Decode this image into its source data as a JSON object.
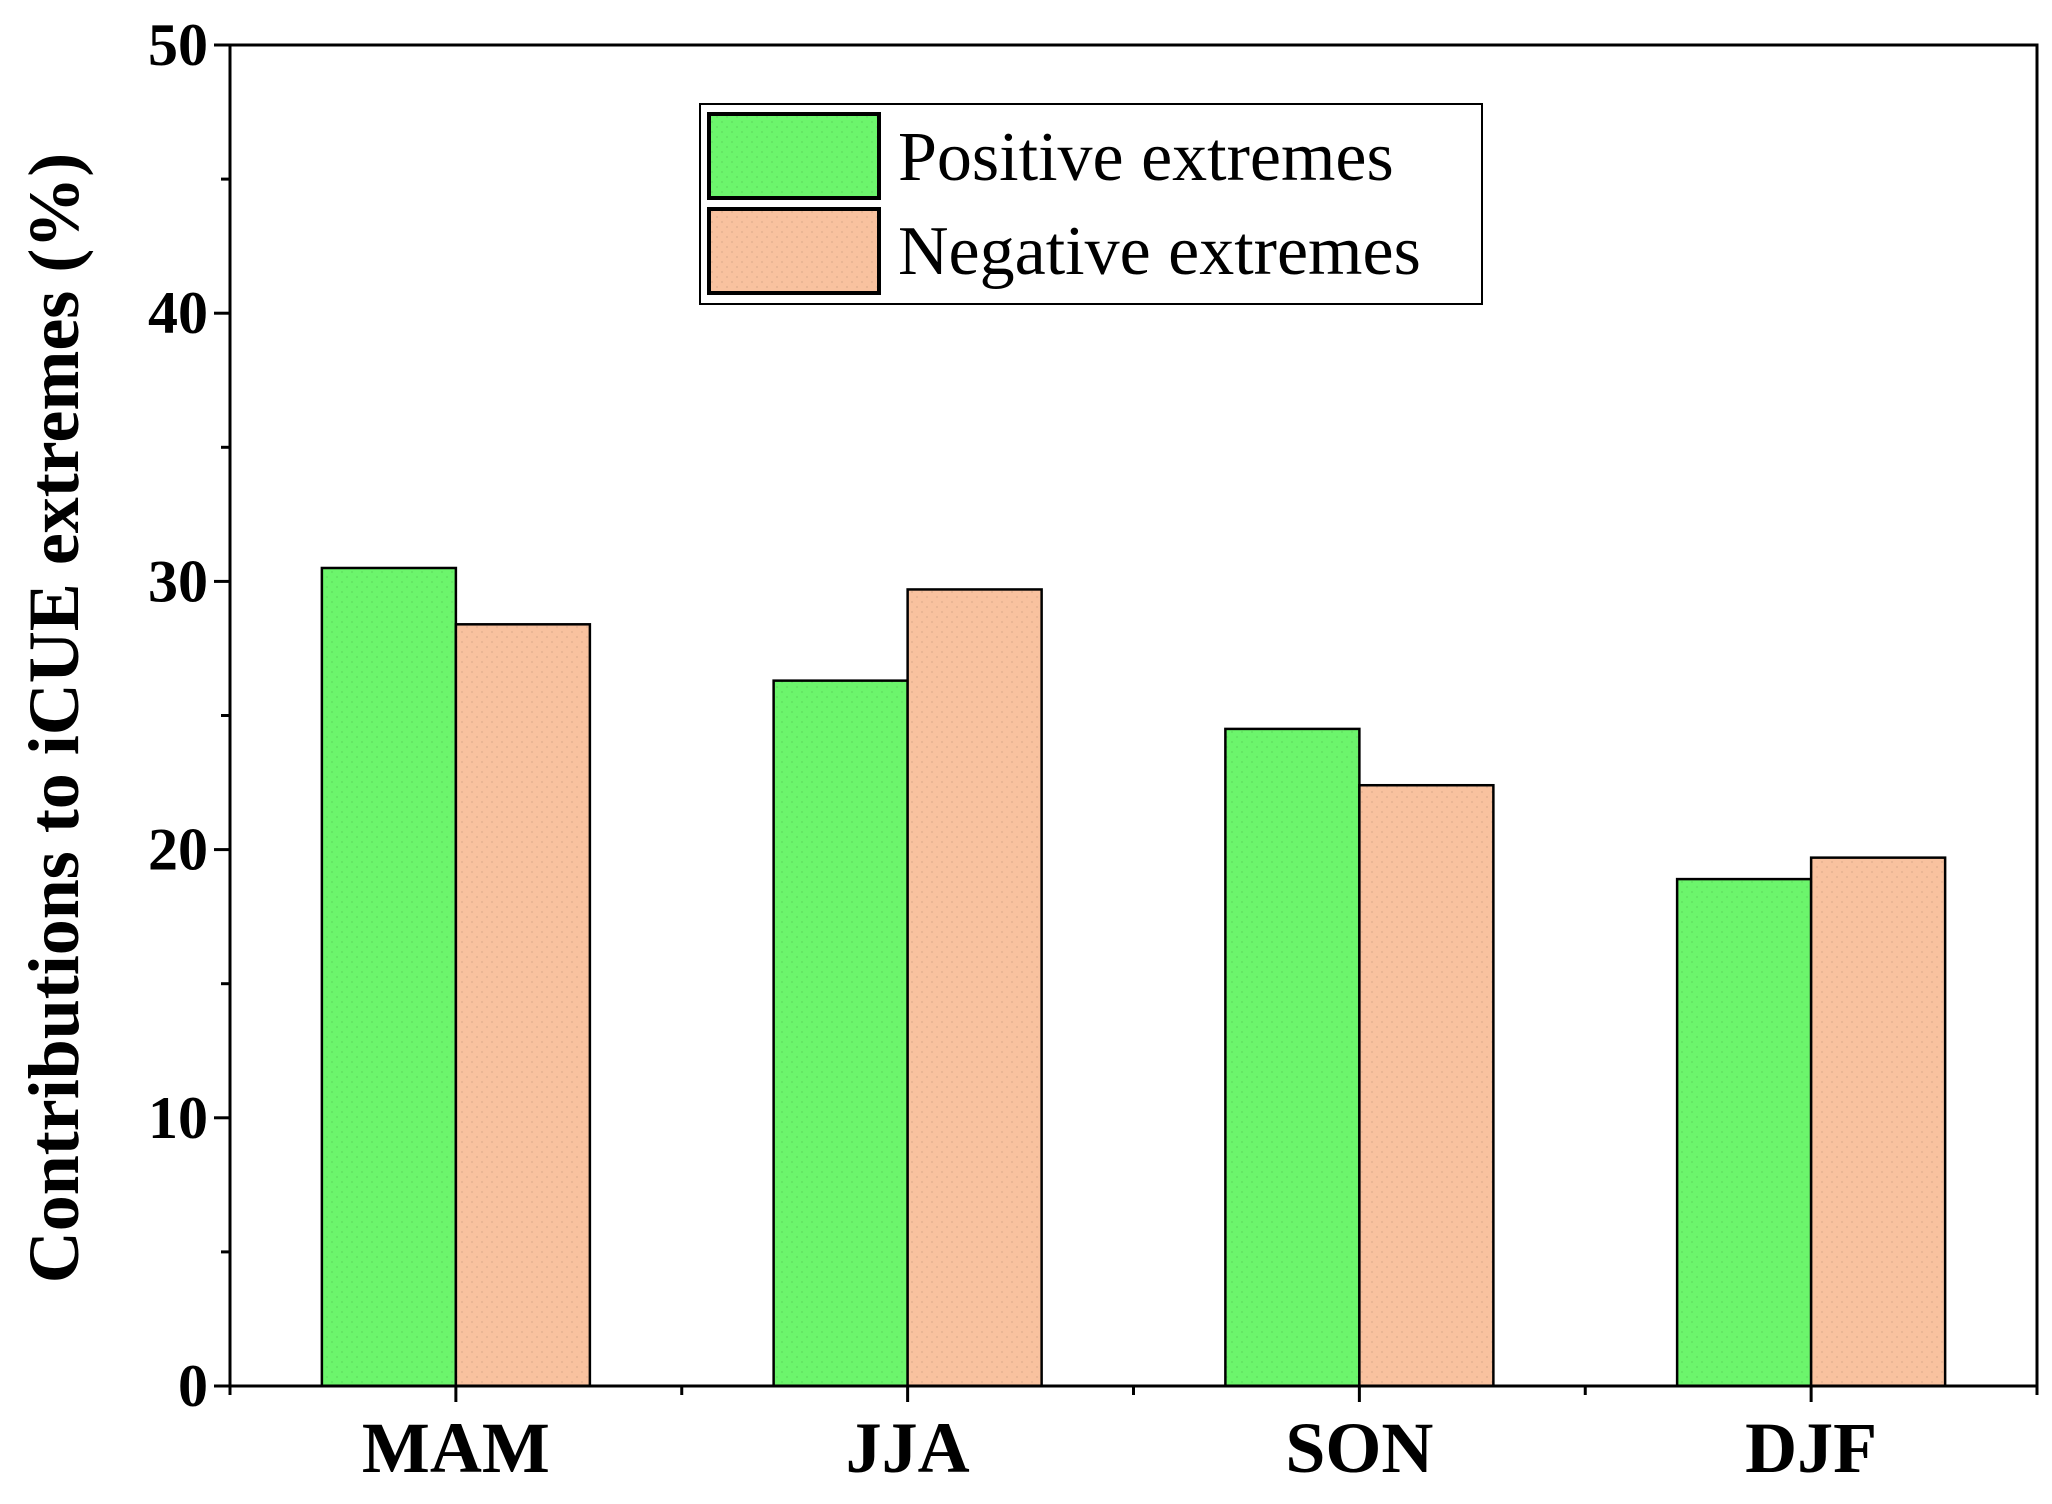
{
  "chart_data": {
    "type": "bar",
    "title": "",
    "xlabel": "",
    "ylabel": "Contributions to iCUE extremes (%)",
    "ylim": [
      0,
      50
    ],
    "yticks": [
      "0",
      "10",
      "20",
      "30",
      "40",
      "50"
    ],
    "ytick_values": [
      0,
      10,
      20,
      30,
      40,
      50
    ],
    "categories": [
      "MAM",
      "JJA",
      "SON",
      "DJF"
    ],
    "series": [
      {
        "name": "Positive extremes",
        "color": "#6cf56c",
        "values": [
          30.5,
          26.3,
          24.5,
          18.9
        ]
      },
      {
        "name": "Negative extremes",
        "color": "#f9c29f",
        "values": [
          28.4,
          29.7,
          22.4,
          19.7
        ]
      }
    ],
    "legend_position": "top-center",
    "grid": false
  }
}
